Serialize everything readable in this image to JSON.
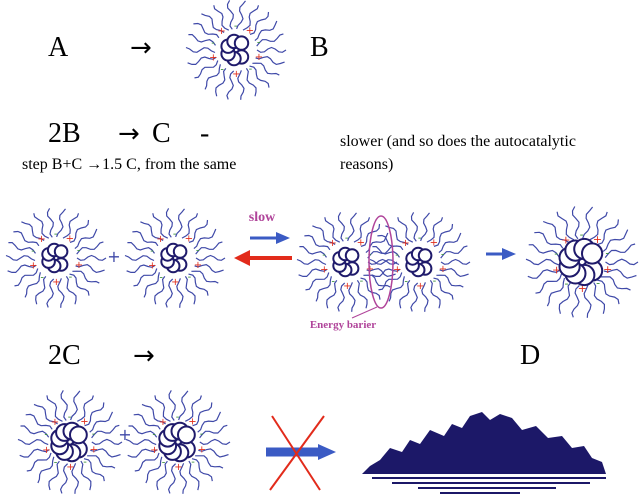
{
  "line1": {
    "left": "A",
    "arrow": "→",
    "right": "B"
  },
  "line2": {
    "left": "2B",
    "arrow": "→",
    "right": "C",
    "dash": "-"
  },
  "line2_note_left": "step B+C →1.5 C, from the same",
  "line2_note_right_a": "slower (and so does the autocatalytic",
  "line2_note_right_b": "reasons)",
  "row2": {
    "plus": "+",
    "slow_label": "slow",
    "barrier_label": "Energy barier"
  },
  "line4": {
    "left": "2C",
    "arrow": "→",
    "right": "D"
  },
  "row4": {
    "plus": "+"
  },
  "colors": {
    "ligand": "#3f49a8",
    "core": "#1f1a6b",
    "plus_sign": "#e0301e",
    "minus_sign": "#2e8b2e",
    "arrow_blue": "#3b5bc4",
    "arrow_red": "#e22b1b",
    "magenta": "#b0449a",
    "aggregate": "#1c1868"
  }
}
